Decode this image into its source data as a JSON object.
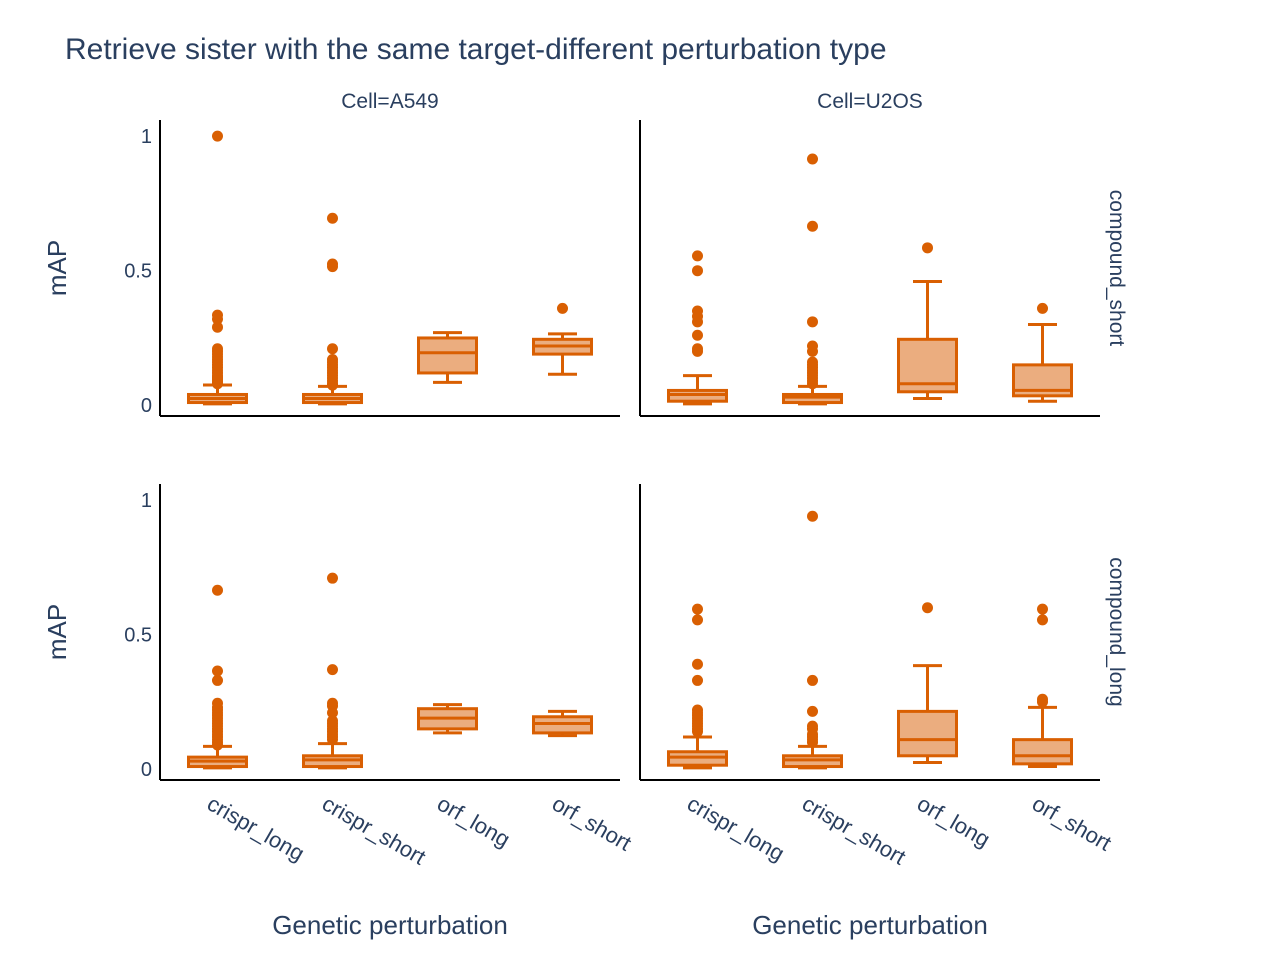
{
  "chart_data": {
    "type": "box",
    "title": "Retrieve sister with the same target-different perturbation type",
    "xlabel": "Genetic perturbation",
    "ylabel": "mAP",
    "col_facet_labels": [
      "Cell=A549",
      "Cell=U2OS"
    ],
    "row_facet_labels": [
      "compound_short",
      "compound_long"
    ],
    "categories": [
      "crispr_long",
      "crispr_short",
      "orf_long",
      "orf_short"
    ],
    "y_ticks": [
      0,
      0.5,
      1
    ],
    "y_tick_labels": [
      "0",
      "0.5",
      "1"
    ],
    "ylim": [
      -0.04,
      1.06
    ],
    "colors": {
      "box_line": "#d95f02",
      "box_fill": "#ebad7f",
      "text": "#2a3f5f"
    },
    "panels": [
      {
        "row": "compound_short",
        "col": "Cell=A549",
        "boxes": [
          {
            "category": "crispr_long",
            "min": 0.005,
            "q1": 0.01,
            "median": 0.025,
            "q3": 0.04,
            "max": 0.075,
            "outliers": [
              0.08,
              0.085,
              0.09,
              0.095,
              0.1,
              0.105,
              0.11,
              0.12,
              0.13,
              0.14,
              0.15,
              0.16,
              0.17,
              0.18,
              0.19,
              0.2,
              0.21,
              0.29,
              0.32,
              0.335,
              1.0
            ]
          },
          {
            "category": "crispr_short",
            "min": 0.005,
            "q1": 0.01,
            "median": 0.025,
            "q3": 0.04,
            "max": 0.07,
            "outliers": [
              0.075,
              0.08,
              0.09,
              0.1,
              0.11,
              0.12,
              0.13,
              0.14,
              0.15,
              0.16,
              0.17,
              0.21,
              0.515,
              0.525,
              0.695
            ]
          },
          {
            "category": "orf_long",
            "min": 0.085,
            "q1": 0.12,
            "median": 0.195,
            "q3": 0.25,
            "max": 0.27,
            "outliers": []
          },
          {
            "category": "orf_short",
            "min": 0.115,
            "q1": 0.19,
            "median": 0.22,
            "q3": 0.245,
            "max": 0.265,
            "outliers": [
              0.36
            ]
          }
        ]
      },
      {
        "row": "compound_short",
        "col": "Cell=U2OS",
        "boxes": [
          {
            "category": "crispr_long",
            "min": 0.005,
            "q1": 0.015,
            "median": 0.04,
            "q3": 0.055,
            "max": 0.11,
            "outliers": [
              0.2,
              0.21,
              0.26,
              0.31,
              0.33,
              0.35,
              0.5,
              0.555
            ]
          },
          {
            "category": "crispr_short",
            "min": 0.005,
            "q1": 0.01,
            "median": 0.03,
            "q3": 0.04,
            "max": 0.07,
            "outliers": [
              0.08,
              0.09,
              0.1,
              0.11,
              0.12,
              0.13,
              0.14,
              0.15,
              0.16,
              0.2,
              0.22,
              0.31,
              0.665,
              0.915
            ]
          },
          {
            "category": "orf_long",
            "min": 0.025,
            "q1": 0.05,
            "median": 0.08,
            "q3": 0.245,
            "max": 0.46,
            "outliers": [
              0.585
            ]
          },
          {
            "category": "orf_short",
            "min": 0.015,
            "q1": 0.035,
            "median": 0.055,
            "q3": 0.15,
            "max": 0.3,
            "outliers": [
              0.36
            ]
          }
        ]
      },
      {
        "row": "compound_long",
        "col": "Cell=A549",
        "boxes": [
          {
            "category": "crispr_long",
            "min": 0.005,
            "q1": 0.01,
            "median": 0.03,
            "q3": 0.045,
            "max": 0.085,
            "outliers": [
              0.09,
              0.1,
              0.11,
              0.12,
              0.13,
              0.14,
              0.15,
              0.16,
              0.17,
              0.18,
              0.19,
              0.2,
              0.21,
              0.22,
              0.23,
              0.245,
              0.33,
              0.365,
              0.665
            ]
          },
          {
            "category": "crispr_short",
            "min": 0.005,
            "q1": 0.01,
            "median": 0.035,
            "q3": 0.05,
            "max": 0.095,
            "outliers": [
              0.11,
              0.12,
              0.13,
              0.14,
              0.15,
              0.16,
              0.17,
              0.18,
              0.21,
              0.235,
              0.245,
              0.37,
              0.71
            ]
          },
          {
            "category": "orf_long",
            "min": 0.135,
            "q1": 0.15,
            "median": 0.19,
            "q3": 0.225,
            "max": 0.24,
            "outliers": []
          },
          {
            "category": "orf_short",
            "min": 0.125,
            "q1": 0.135,
            "median": 0.17,
            "q3": 0.195,
            "max": 0.215,
            "outliers": []
          }
        ]
      },
      {
        "row": "compound_long",
        "col": "Cell=U2OS",
        "boxes": [
          {
            "category": "crispr_long",
            "min": 0.005,
            "q1": 0.015,
            "median": 0.045,
            "q3": 0.065,
            "max": 0.12,
            "outliers": [
              0.14,
              0.15,
              0.16,
              0.17,
              0.18,
              0.19,
              0.2,
              0.21,
              0.22,
              0.33,
              0.39,
              0.555,
              0.595
            ]
          },
          {
            "category": "crispr_short",
            "min": 0.005,
            "q1": 0.01,
            "median": 0.035,
            "q3": 0.05,
            "max": 0.085,
            "outliers": [
              0.1,
              0.11,
              0.12,
              0.13,
              0.15,
              0.16,
              0.215,
              0.33,
              0.94
            ]
          },
          {
            "category": "orf_long",
            "min": 0.025,
            "q1": 0.05,
            "median": 0.11,
            "q3": 0.215,
            "max": 0.385,
            "outliers": [
              0.6
            ]
          },
          {
            "category": "orf_short",
            "min": 0.01,
            "q1": 0.02,
            "median": 0.05,
            "q3": 0.11,
            "max": 0.23,
            "outliers": [
              0.25,
              0.26,
              0.555,
              0.595
            ]
          }
        ]
      }
    ]
  }
}
